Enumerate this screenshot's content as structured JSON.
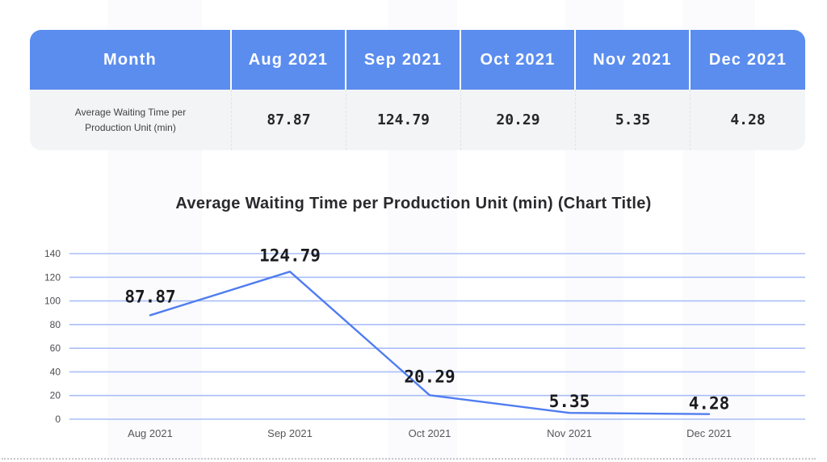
{
  "table": {
    "header": [
      "Month",
      "Aug 2021",
      "Sep 2021",
      "Oct 2021",
      "Nov 2021",
      "Dec 2021"
    ],
    "row_label": "Average Waiting Time per Production Unit (min)",
    "row_values": [
      "87.87",
      "124.79",
      "20.29",
      "5.35",
      "4.28"
    ]
  },
  "chart_data": {
    "type": "line",
    "title": "Average Waiting Time per Production Unit (min) (Chart Title)",
    "categories": [
      "Aug 2021",
      "Sep 2021",
      "Oct 2021",
      "Nov 2021",
      "Dec 2021"
    ],
    "values": [
      87.87,
      124.79,
      20.29,
      5.35,
      4.28
    ],
    "data_labels": [
      "87.87",
      "124.79",
      "20.29",
      "5.35",
      "4.28"
    ],
    "yticks": [
      0,
      20,
      40,
      60,
      80,
      100,
      120,
      140
    ],
    "ylim": [
      0,
      140
    ],
    "grid": true,
    "legend_position": "none",
    "xlabel": "",
    "ylabel": ""
  },
  "colors": {
    "header_bg": "#5b8def",
    "row_bg": "#f3f4f6",
    "line": "#4f7df0",
    "gridline": "#aabff7",
    "tick_text": "#4b4c50",
    "xtick_text": "#55565a",
    "data_label_text": "#1b1b1f"
  }
}
